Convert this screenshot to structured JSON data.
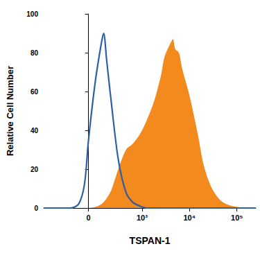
{
  "chart_data": {
    "type": "line",
    "x_label": "TSPAN-1",
    "y_label": "Relative Cell Number",
    "x": [
      -650,
      -300,
      -150,
      -75,
      -30,
      0,
      50,
      100,
      120,
      150,
      200,
      300,
      450,
      630,
      900,
      1250,
      1800,
      2500,
      3000,
      4000,
      4500,
      5000,
      6000,
      7000,
      10000,
      15000,
      20000,
      30000,
      50000,
      100000,
      250000
    ],
    "series": [
      {
        "color": "#f28a1e",
        "type": "area",
        "values": [
          0,
          0,
          0,
          0,
          0,
          0,
          0.5,
          2,
          3,
          5,
          9,
          20,
          30,
          33,
          38,
          45,
          55,
          68,
          78,
          85,
          87,
          82,
          80,
          72,
          58,
          38,
          22,
          10,
          3,
          0.5,
          0
        ]
      },
      {
        "color": "#2e5ea8",
        "type": "line",
        "values": [
          0,
          0,
          0,
          2,
          12,
          35,
          65,
          85,
          90,
          76,
          55,
          25,
          8,
          3,
          1,
          0,
          0,
          0,
          0,
          0,
          0,
          0,
          0,
          0,
          0,
          0,
          0,
          0,
          0,
          0,
          0
        ]
      }
    ],
    "xlim": [
      -650,
      250000
    ],
    "xticks": [
      0,
      {
        "value": 1000,
        "label": "10³"
      },
      {
        "value": 10000,
        "label": "10⁴"
      },
      {
        "value": 100000,
        "label": "10⁵"
      }
    ],
    "ylim": [
      0,
      100
    ],
    "yticks": [
      0,
      20,
      40,
      60,
      80,
      100
    ],
    "grid": false
  }
}
